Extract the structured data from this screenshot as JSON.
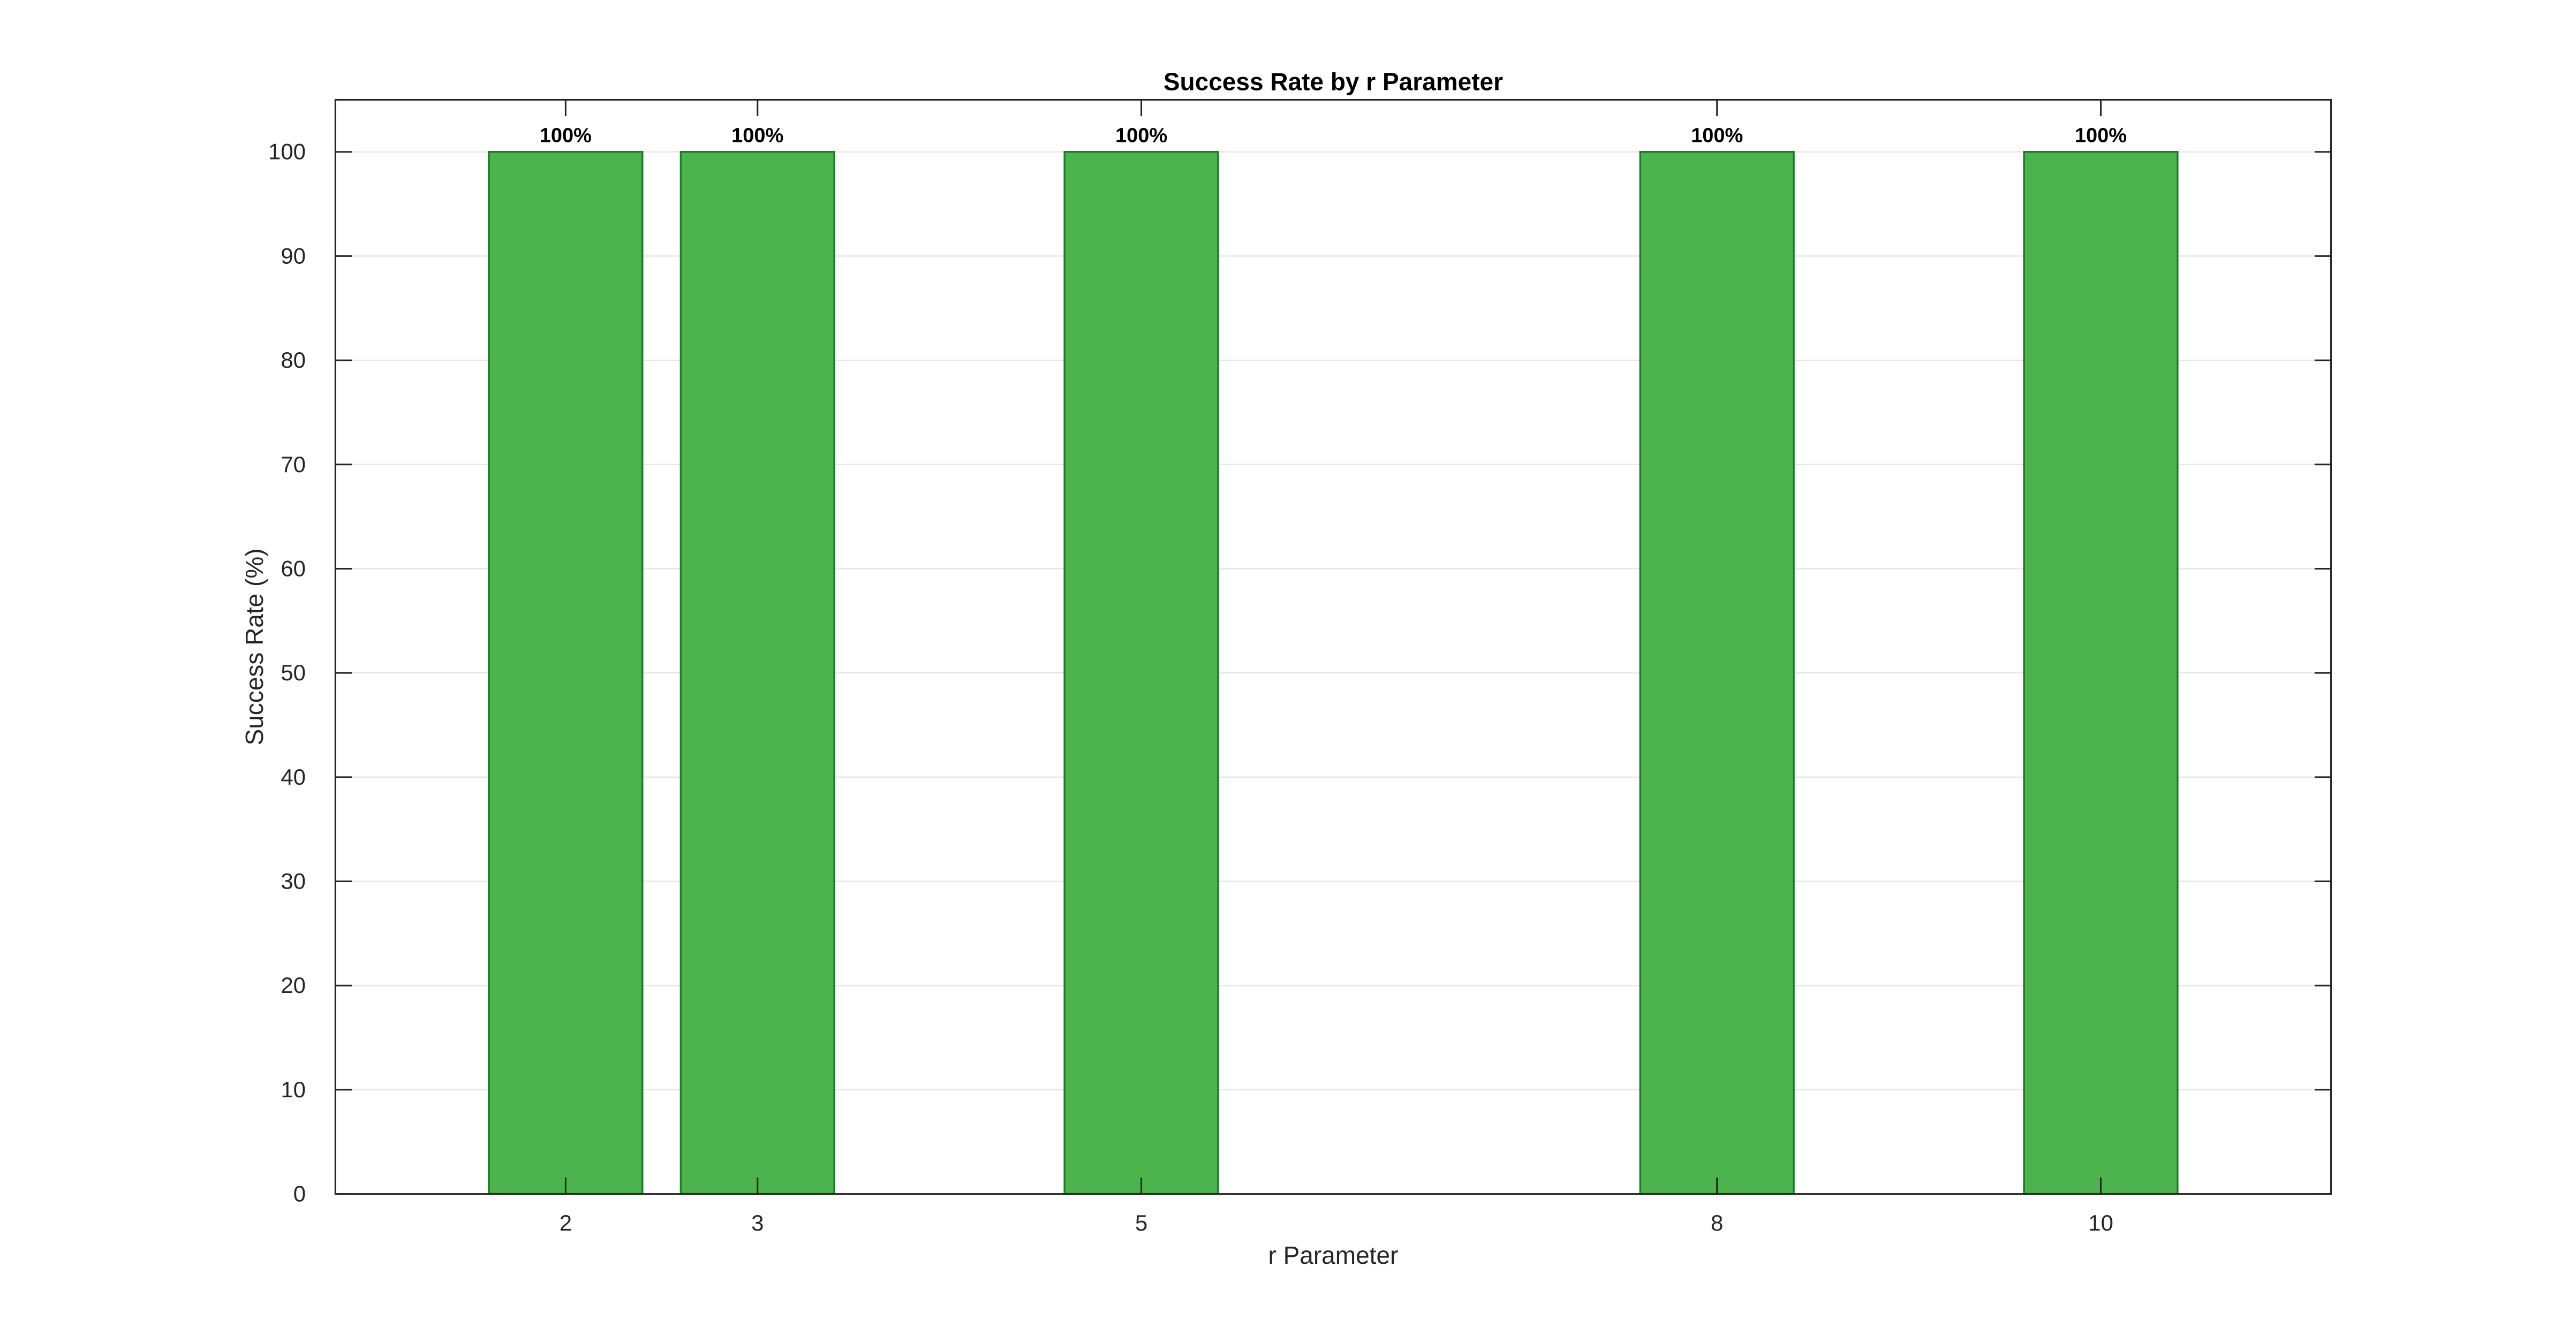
{
  "chart_data": {
    "type": "bar",
    "title": "Success Rate by r Parameter",
    "xlabel": "r Parameter",
    "ylabel": "Success Rate (%)",
    "x": [
      2,
      3,
      5,
      8,
      10
    ],
    "x_tick_labels": [
      "2",
      "3",
      "5",
      "8",
      "10"
    ],
    "values": [
      100,
      100,
      100,
      100,
      100
    ],
    "data_labels": [
      "100%",
      "100%",
      "100%",
      "100%",
      "100%"
    ],
    "xlim": [
      0.8,
      11.2
    ],
    "ylim": [
      0,
      105
    ],
    "y_ticks": [
      0,
      10,
      20,
      30,
      40,
      50,
      60,
      70,
      80,
      90,
      100
    ],
    "y_tick_labels": [
      "0",
      "10",
      "20",
      "30",
      "40",
      "50",
      "60",
      "70",
      "80",
      "90",
      "100"
    ],
    "bar_width": 0.8,
    "grid": "horizontal",
    "legend": "none",
    "colors": {
      "bar_fill": "#4DB34D",
      "bar_edge": "#1E7A2E",
      "grid": "#E6E6E6",
      "axis": "#262626"
    }
  }
}
